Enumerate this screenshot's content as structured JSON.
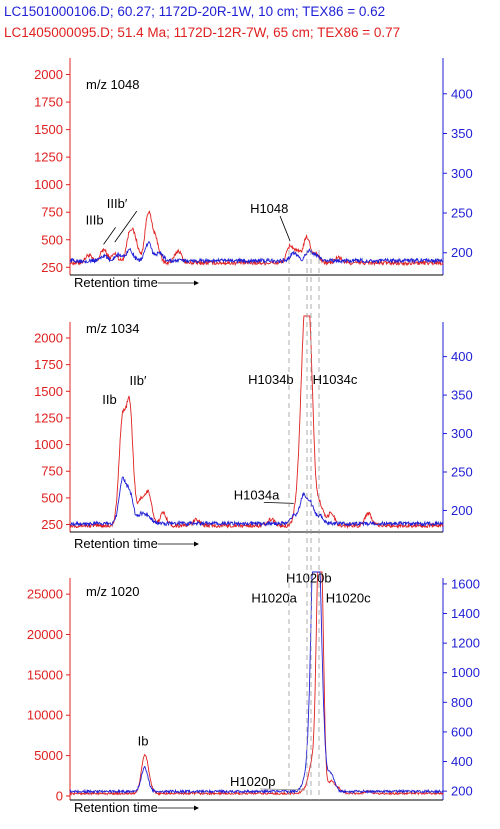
{
  "header": {
    "blue_line": "LC1501000106.D; 60.27; 1172D-20R-1W, 10 cm; TEX86 = 0.62",
    "red_line": "LC1405000095.D; 51.4 Ma; 1172D-12R-7W, 65 cm; TEX86 = 0.77"
  },
  "colors": {
    "blue_series": "#1f1fd6",
    "red_series": "#e02020",
    "guide": "#9a9a9a"
  },
  "chart_data": [
    {
      "type": "line",
      "title": "m/z 1048",
      "xlabel": "Retention time",
      "left_axis": {
        "color": "red",
        "ticks": [
          "250",
          "500",
          "750",
          "1000",
          "1250",
          "1500",
          "1750",
          "2000"
        ],
        "ylim": [
          180,
          2150
        ]
      },
      "right_axis": {
        "color": "blue",
        "ticks": [
          "200",
          "250",
          "300",
          "350",
          "400"
        ],
        "ylim": [
          172,
          445
        ]
      },
      "series": [
        {
          "color": "red",
          "axis": "left",
          "baseline": 290,
          "noise": 18,
          "peaks": [
            [
              0.05,
              70
            ],
            [
              0.09,
              120
            ],
            [
              0.12,
              80
            ],
            [
              0.16,
              250
            ],
            [
              0.175,
              180
            ],
            [
              0.21,
              450
            ],
            [
              0.23,
              200
            ],
            [
              0.29,
              110
            ],
            [
              0.59,
              150
            ],
            [
              0.61,
              90
            ],
            [
              0.635,
              230
            ],
            [
              0.66,
              80
            ],
            [
              0.72,
              50
            ]
          ]
        },
        {
          "color": "blue",
          "axis": "right",
          "baseline": 190,
          "noise": 2.5,
          "peaks": [
            [
              0.09,
              6
            ],
            [
              0.13,
              8
            ],
            [
              0.16,
              14
            ],
            [
              0.21,
              22
            ],
            [
              0.24,
              10
            ],
            [
              0.6,
              10
            ],
            [
              0.64,
              12
            ],
            [
              0.66,
              6
            ]
          ]
        }
      ],
      "annotations": [
        {
          "text": "IIIb",
          "x": 0.09,
          "value": 440
        },
        {
          "text": "IIIb′",
          "x": 0.12,
          "value": 460
        },
        {
          "text": "H1048",
          "x": 0.59,
          "value": 470
        }
      ]
    },
    {
      "type": "line",
      "title": "m/z 1034",
      "xlabel": "Retention time",
      "left_axis": {
        "color": "red",
        "ticks": [
          "250",
          "500",
          "750",
          "1000",
          "1250",
          "1500",
          "1750",
          "2000"
        ],
        "ylim": [
          180,
          2150
        ]
      },
      "right_axis": {
        "color": "blue",
        "ticks": [
          "200",
          "250",
          "300",
          "350",
          "400"
        ],
        "ylim": [
          172,
          445
        ]
      },
      "series": [
        {
          "color": "red",
          "axis": "left",
          "baseline": 240,
          "noise": 18,
          "peaks": [
            [
              0.14,
              950
            ],
            [
              0.16,
              1100
            ],
            [
              0.19,
              230
            ],
            [
              0.21,
              300
            ],
            [
              0.25,
              120
            ],
            [
              0.34,
              60
            ],
            [
              0.54,
              60
            ],
            [
              0.61,
              200
            ],
            [
              0.625,
              1150
            ],
            [
              0.635,
              1000
            ],
            [
              0.645,
              1150
            ],
            [
              0.67,
              200
            ],
            [
              0.7,
              120
            ],
            [
              0.8,
              120
            ]
          ]
        },
        {
          "color": "blue",
          "axis": "right",
          "baseline": 183,
          "noise": 2.5,
          "peaks": [
            [
              0.14,
              55
            ],
            [
              0.16,
              40
            ],
            [
              0.19,
              12
            ],
            [
              0.21,
              10
            ],
            [
              0.6,
              10
            ],
            [
              0.625,
              35
            ],
            [
              0.645,
              25
            ],
            [
              0.67,
              10
            ]
          ]
        }
      ],
      "annotations": [
        {
          "text": "IIb",
          "x": 0.14,
          "value": 1250
        },
        {
          "text": "IIb′",
          "x": 0.165,
          "value": 1390
        },
        {
          "text": "H1034a",
          "x": 0.6,
          "value": 430
        },
        {
          "text": "H1034b",
          "x": 0.625,
          "value": 1420
        },
        {
          "text": "H1034c",
          "x": 0.645,
          "value": 1420
        }
      ]
    },
    {
      "type": "line",
      "title": "m/z 1020",
      "xlabel": "Retention time",
      "left_axis": {
        "color": "red",
        "ticks": [
          "0",
          "5000",
          "10000",
          "15000",
          "20000",
          "25000"
        ],
        "ylim": [
          -500,
          27000
        ]
      },
      "right_axis": {
        "color": "blue",
        "ticks": [
          "200",
          "400",
          "600",
          "800",
          "1000",
          "1200",
          "1400",
          "1600"
        ],
        "ylim": [
          140,
          1640
        ]
      },
      "series": [
        {
          "color": "red",
          "axis": "left",
          "baseline": 300,
          "noise": 120,
          "peaks": [
            [
              0.2,
              4300
            ],
            [
              0.21,
              900
            ],
            [
              0.63,
              500
            ],
            [
              0.65,
              4000
            ],
            [
              0.665,
              23000
            ],
            [
              0.675,
              23000
            ],
            [
              0.7,
              1500
            ],
            [
              0.72,
              600
            ],
            [
              0.8,
              300
            ]
          ]
        },
        {
          "color": "blue",
          "axis": "right",
          "baseline": 198,
          "noise": 8,
          "peaks": [
            [
              0.2,
              160
            ],
            [
              0.63,
              60
            ],
            [
              0.645,
              200
            ],
            [
              0.655,
              1320
            ],
            [
              0.665,
              1150
            ],
            [
              0.675,
              300
            ],
            [
              0.7,
              120
            ]
          ]
        }
      ],
      "annotations": [
        {
          "text": "Ib",
          "x": 0.2,
          "value": 4300
        },
        {
          "text": "H1020a",
          "x": 0.655,
          "value": 23000
        },
        {
          "text": "H1020b",
          "x": 0.665,
          "value": 23000
        },
        {
          "text": "H1020c",
          "x": 0.675,
          "value": 23000
        },
        {
          "text": "H1020p",
          "x": 0.63,
          "value": 500,
          "color": "gray"
        }
      ]
    }
  ]
}
